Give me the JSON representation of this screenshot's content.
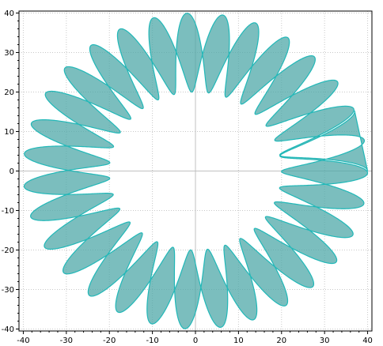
{
  "chart_data": {
    "type": "area",
    "title": "",
    "xlabel": "",
    "ylabel": "",
    "xlim": [
      -41,
      41
    ],
    "ylim": [
      -40.5,
      40.5
    ],
    "x_ticks": [
      -40,
      -30,
      -20,
      -10,
      0,
      10,
      20,
      30,
      40
    ],
    "y_ticks": [
      40,
      30,
      20,
      10,
      0,
      -10,
      -20,
      -30,
      -40
    ],
    "grid": true,
    "legend": "none",
    "series": [
      {
        "curve": "rose",
        "outer_radius": 40,
        "inner_radius": 20,
        "lobes": 16,
        "turns": 2,
        "winding_offset_deg": 11.25,
        "fill_rule": "evenodd",
        "stroke_color": "#21b8b8",
        "fill_color": "#4fa8a8"
      }
    ]
  }
}
